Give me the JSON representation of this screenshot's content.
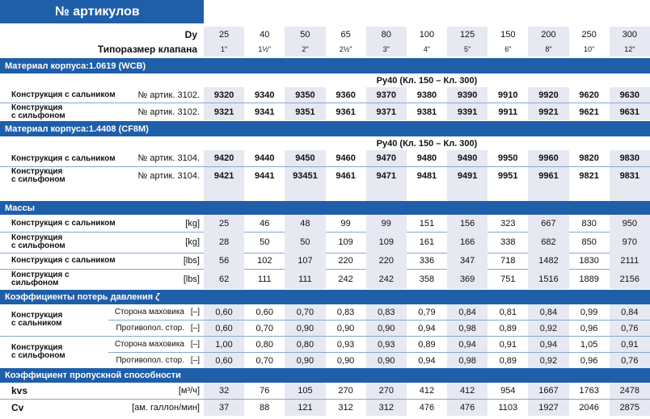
{
  "title": "№ артикулов",
  "header": {
    "dy_label": "Dy",
    "dy": [
      "25",
      "40",
      "50",
      "65",
      "80",
      "100",
      "125",
      "150",
      "200",
      "250",
      "300"
    ],
    "size_label": "Типоразмер клапана",
    "sizes": [
      "1\"",
      "1½\"",
      "2\"",
      "2½\"",
      "3\"",
      "4\"",
      "5\"",
      "6\"",
      "8\"",
      "10\"",
      "12\""
    ]
  },
  "material1": {
    "title": "Материал корпуса:1.0619 (WCB)",
    "pressure": "Ру40 (Кл. 150 – Кл. 300)",
    "row1": {
      "label": "Конструкция с сальником",
      "prefix": "№ артик. 3102.",
      "values": [
        "9320",
        "9340",
        "9350",
        "9360",
        "9370",
        "9380",
        "9390",
        "9910",
        "9920",
        "9620",
        "9630"
      ]
    },
    "row2": {
      "label_1": "Конструкция",
      "label_2": "с сильфоном",
      "prefix": "№ артик. 3102.",
      "values": [
        "9321",
        "9341",
        "9351",
        "9361",
        "9371",
        "9381",
        "9391",
        "9911",
        "9921",
        "9621",
        "9631"
      ]
    }
  },
  "material2": {
    "title": "Материал корпуса:1.4408 (CF8M)",
    "pressure": "Ру40 (Кл. 150 – Кл. 300)",
    "row1": {
      "label": "Конструкция с сальником",
      "prefix": "№ артик. 3104.",
      "values": [
        "9420",
        "9440",
        "9450",
        "9460",
        "9470",
        "9480",
        "9490",
        "9950",
        "9960",
        "9820",
        "9830"
      ]
    },
    "row2": {
      "label_1": "Конструкция",
      "label_2": "с сильфоном",
      "prefix": "№ артик. 3104.",
      "values": [
        "9421",
        "9441",
        "93451",
        "9461",
        "9471",
        "9481",
        "9491",
        "9951",
        "9961",
        "9821",
        "9831"
      ]
    }
  },
  "masses": {
    "title": "Массы",
    "rows": [
      {
        "label_1": "Конструкция с сальником",
        "label_2": "",
        "unit": "[kg]",
        "values": [
          "25",
          "46",
          "48",
          "99",
          "99",
          "151",
          "156",
          "323",
          "667",
          "830",
          "950"
        ]
      },
      {
        "label_1": "Конструкция",
        "label_2": "с сильфоном",
        "unit": "[kg]",
        "values": [
          "28",
          "50",
          "50",
          "109",
          "109",
          "161",
          "166",
          "338",
          "682",
          "850",
          "970"
        ]
      },
      {
        "label_1": "Конструкция с сальником",
        "label_2": "",
        "unit": "[lbs]",
        "values": [
          "56",
          "102",
          "107",
          "220",
          "220",
          "336",
          "347",
          "718",
          "1482",
          "1830",
          "2111"
        ]
      },
      {
        "label_1": "Конструкция с",
        "label_2": "сильфоном",
        "unit": "[lbs]",
        "values": [
          "62",
          "111",
          "111",
          "242",
          "242",
          "358",
          "369",
          "751",
          "1516",
          "1889",
          "2156"
        ]
      }
    ]
  },
  "loss": {
    "title": "Коэффициенты потерь давления ",
    "zeta": "ζ",
    "groups": [
      {
        "label_1": "Конструкция",
        "label_2": "с сальником",
        "rows": [
          {
            "side": "Сторона маховика",
            "unit": "[–]",
            "values": [
              "0,60",
              "0,60",
              "0,70",
              "0,83",
              "0,83",
              "0,79",
              "0,84",
              "0,81",
              "0,84",
              "0,99",
              "0,84"
            ]
          },
          {
            "side": "Противопол. стор.",
            "unit": "[–]",
            "values": [
              "0,60",
              "0,70",
              "0,90",
              "0,90",
              "0,90",
              "0,94",
              "0,98",
              "0,89",
              "0,92",
              "0,96",
              "0,76"
            ]
          }
        ]
      },
      {
        "label_1": "Конструкция",
        "label_2": "с сильфоном",
        "rows": [
          {
            "side": "Сторона маховика",
            "unit": "[–]",
            "values": [
              "1,00",
              "0,80",
              "0,80",
              "0,93",
              "0,93",
              "0,89",
              "0,94",
              "0,91",
              "0,94",
              "1,05",
              "0,91"
            ]
          },
          {
            "side": "Противопол. стор.",
            "unit": "[–]",
            "values": [
              "0,60",
              "0,70",
              "0,90",
              "0,90",
              "0,90",
              "0,94",
              "0,98",
              "0,89",
              "0,92",
              "0,96",
              "0,76"
            ]
          }
        ]
      }
    ]
  },
  "flow": {
    "title": "Коэффициент пропускной способности",
    "rows": [
      {
        "label": "kvs",
        "unit": "[м³/ч]",
        "values": [
          "32",
          "76",
          "105",
          "270",
          "270",
          "412",
          "412",
          "954",
          "1667",
          "1763",
          "2478"
        ]
      },
      {
        "label": "Cv",
        "unit": "[ам. галлон/мин]",
        "values": [
          "37",
          "88",
          "121",
          "312",
          "312",
          "476",
          "476",
          "1103",
          "1927",
          "2046",
          "2875"
        ]
      }
    ]
  }
}
